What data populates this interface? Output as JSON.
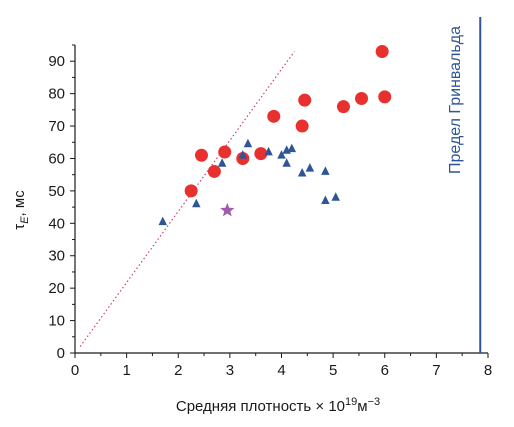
{
  "chart_data": {
    "type": "scatter",
    "xlabel": "Средняя плотность × 10",
    "xlabel_exponent": "19",
    "xlabel_unit": "м",
    "xlabel_unit_exponent": "−3",
    "ylabel_main": "τ",
    "ylabel_sub": "E",
    "ylabel_unit": ", мс",
    "xlim": [
      0,
      8
    ],
    "ylim": [
      0,
      95
    ],
    "xticks": [
      "0",
      "1",
      "2",
      "3",
      "4",
      "5",
      "6",
      "7",
      "8"
    ],
    "yticks": [
      "0",
      "10",
      "20",
      "30",
      "40",
      "50",
      "60",
      "70",
      "80",
      "90"
    ],
    "grid": false,
    "series": [
      {
        "marker": "circle",
        "color": "#e8312f",
        "points": [
          {
            "x": 2.25,
            "y": 50
          },
          {
            "x": 2.45,
            "y": 61
          },
          {
            "x": 2.7,
            "y": 56
          },
          {
            "x": 2.9,
            "y": 62
          },
          {
            "x": 3.25,
            "y": 60
          },
          {
            "x": 3.6,
            "y": 61.5
          },
          {
            "x": 3.85,
            "y": 73
          },
          {
            "x": 4.4,
            "y": 70
          },
          {
            "x": 4.45,
            "y": 78
          },
          {
            "x": 5.2,
            "y": 76
          },
          {
            "x": 5.55,
            "y": 78.5
          },
          {
            "x": 5.95,
            "y": 93
          },
          {
            "x": 6.0,
            "y": 79
          }
        ]
      },
      {
        "marker": "triangle",
        "color": "#2f5597",
        "points": [
          {
            "x": 1.7,
            "y": 40.5
          },
          {
            "x": 2.35,
            "y": 46
          },
          {
            "x": 2.85,
            "y": 58.5
          },
          {
            "x": 3.25,
            "y": 61
          },
          {
            "x": 3.35,
            "y": 64.5
          },
          {
            "x": 3.75,
            "y": 62
          },
          {
            "x": 4.0,
            "y": 61
          },
          {
            "x": 4.1,
            "y": 58.5
          },
          {
            "x": 4.1,
            "y": 62.5
          },
          {
            "x": 4.2,
            "y": 63
          },
          {
            "x": 4.4,
            "y": 55.5
          },
          {
            "x": 4.55,
            "y": 57
          },
          {
            "x": 4.85,
            "y": 47
          },
          {
            "x": 4.85,
            "y": 56
          },
          {
            "x": 5.05,
            "y": 48
          }
        ]
      },
      {
        "marker": "star",
        "color": "#a05bab",
        "points": [
          {
            "x": 2.95,
            "y": 44
          }
        ]
      }
    ],
    "reference_line": {
      "style": "dotted",
      "color": "#d04070",
      "from": {
        "x": 0.1,
        "y": 2
      },
      "to": {
        "x": 4.25,
        "y": 93
      }
    },
    "limit_line": {
      "x": 7.85,
      "color": "#2f5597",
      "label": "Предел Гринвальда"
    }
  }
}
